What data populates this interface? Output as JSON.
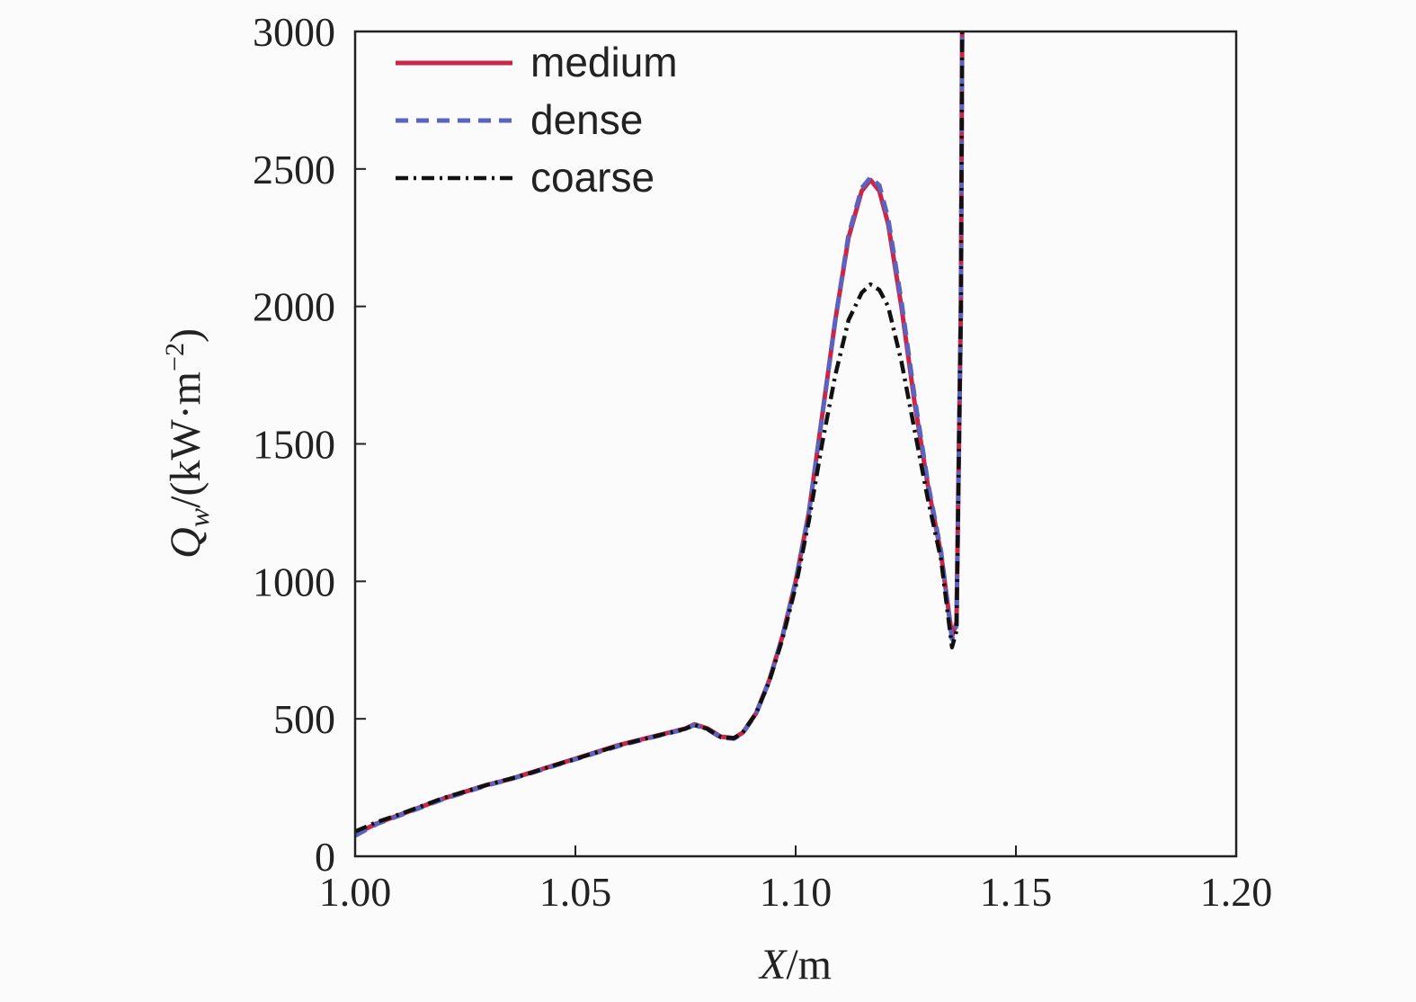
{
  "chart_data": {
    "type": "line",
    "xlabel": {
      "var": "X",
      "unit": "/m"
    },
    "ylabel": {
      "var": "Q",
      "sub": "w",
      "unit_pre": "/(kW·m",
      "unit_sup": "−2",
      "unit_post": ")"
    },
    "xlim": [
      1.0,
      1.2
    ],
    "ylim": [
      0,
      3000
    ],
    "xticks": [
      "1.00",
      "1.05",
      "1.10",
      "1.15",
      "1.20"
    ],
    "xtick_values": [
      1.0,
      1.05,
      1.1,
      1.15,
      1.2
    ],
    "yticks": [
      "0",
      "500",
      "1000",
      "1500",
      "2000",
      "2500",
      "3000"
    ],
    "ytick_values": [
      0,
      500,
      1000,
      1500,
      2000,
      2500,
      3000
    ],
    "grid": false,
    "legend_position": "top-left",
    "series": [
      {
        "name": "medium",
        "color": "#c8274a",
        "style": "solid",
        "x": [
          1.0,
          1.005,
          1.01,
          1.015,
          1.02,
          1.025,
          1.03,
          1.035,
          1.04,
          1.045,
          1.05,
          1.055,
          1.06,
          1.065,
          1.07,
          1.075,
          1.077,
          1.08,
          1.083,
          1.086,
          1.088,
          1.091,
          1.094,
          1.097,
          1.1,
          1.103,
          1.106,
          1.109,
          1.112,
          1.115,
          1.117,
          1.119,
          1.121,
          1.124,
          1.127,
          1.13,
          1.133,
          1.1355,
          1.1365,
          1.1375,
          1.1378
        ],
        "y": [
          80,
          120,
          150,
          180,
          210,
          235,
          260,
          280,
          305,
          330,
          355,
          380,
          405,
          425,
          445,
          465,
          480,
          465,
          435,
          430,
          450,
          520,
          640,
          800,
          1000,
          1250,
          1600,
          1950,
          2250,
          2420,
          2460,
          2420,
          2300,
          2000,
          1650,
          1350,
          1100,
          800,
          850,
          2000,
          3000
        ]
      },
      {
        "name": "dense",
        "color": "#5a64c0",
        "style": "dashed",
        "x": [
          1.0,
          1.005,
          1.01,
          1.015,
          1.02,
          1.025,
          1.03,
          1.035,
          1.04,
          1.045,
          1.05,
          1.055,
          1.06,
          1.065,
          1.07,
          1.075,
          1.077,
          1.08,
          1.083,
          1.086,
          1.088,
          1.091,
          1.094,
          1.097,
          1.1,
          1.103,
          1.106,
          1.109,
          1.112,
          1.115,
          1.117,
          1.119,
          1.121,
          1.124,
          1.127,
          1.13,
          1.133,
          1.1355,
          1.1365,
          1.1375,
          1.1378
        ],
        "y": [
          75,
          118,
          148,
          178,
          208,
          233,
          258,
          279,
          303,
          328,
          353,
          378,
          402,
          423,
          443,
          463,
          478,
          462,
          432,
          428,
          448,
          518,
          638,
          798,
          1000,
          1250,
          1600,
          1950,
          2260,
          2430,
          2470,
          2440,
          2320,
          2020,
          1670,
          1360,
          1110,
          790,
          840,
          2000,
          3000
        ]
      },
      {
        "name": "coarse",
        "color": "#111111",
        "style": "dashdot",
        "x": [
          1.0,
          1.005,
          1.01,
          1.015,
          1.02,
          1.025,
          1.03,
          1.035,
          1.04,
          1.045,
          1.05,
          1.055,
          1.06,
          1.065,
          1.07,
          1.075,
          1.077,
          1.08,
          1.083,
          1.086,
          1.088,
          1.091,
          1.094,
          1.097,
          1.1,
          1.103,
          1.106,
          1.109,
          1.112,
          1.115,
          1.117,
          1.119,
          1.121,
          1.124,
          1.127,
          1.13,
          1.133,
          1.1355,
          1.1365,
          1.1375,
          1.1378
        ],
        "y": [
          90,
          125,
          152,
          182,
          212,
          236,
          260,
          281,
          304,
          330,
          354,
          379,
          404,
          424,
          444,
          464,
          478,
          463,
          433,
          430,
          450,
          520,
          635,
          790,
          980,
          1220,
          1500,
          1750,
          1950,
          2050,
          2080,
          2060,
          2000,
          1800,
          1550,
          1300,
          1080,
          760,
          820,
          2000,
          3000
        ]
      }
    ]
  }
}
